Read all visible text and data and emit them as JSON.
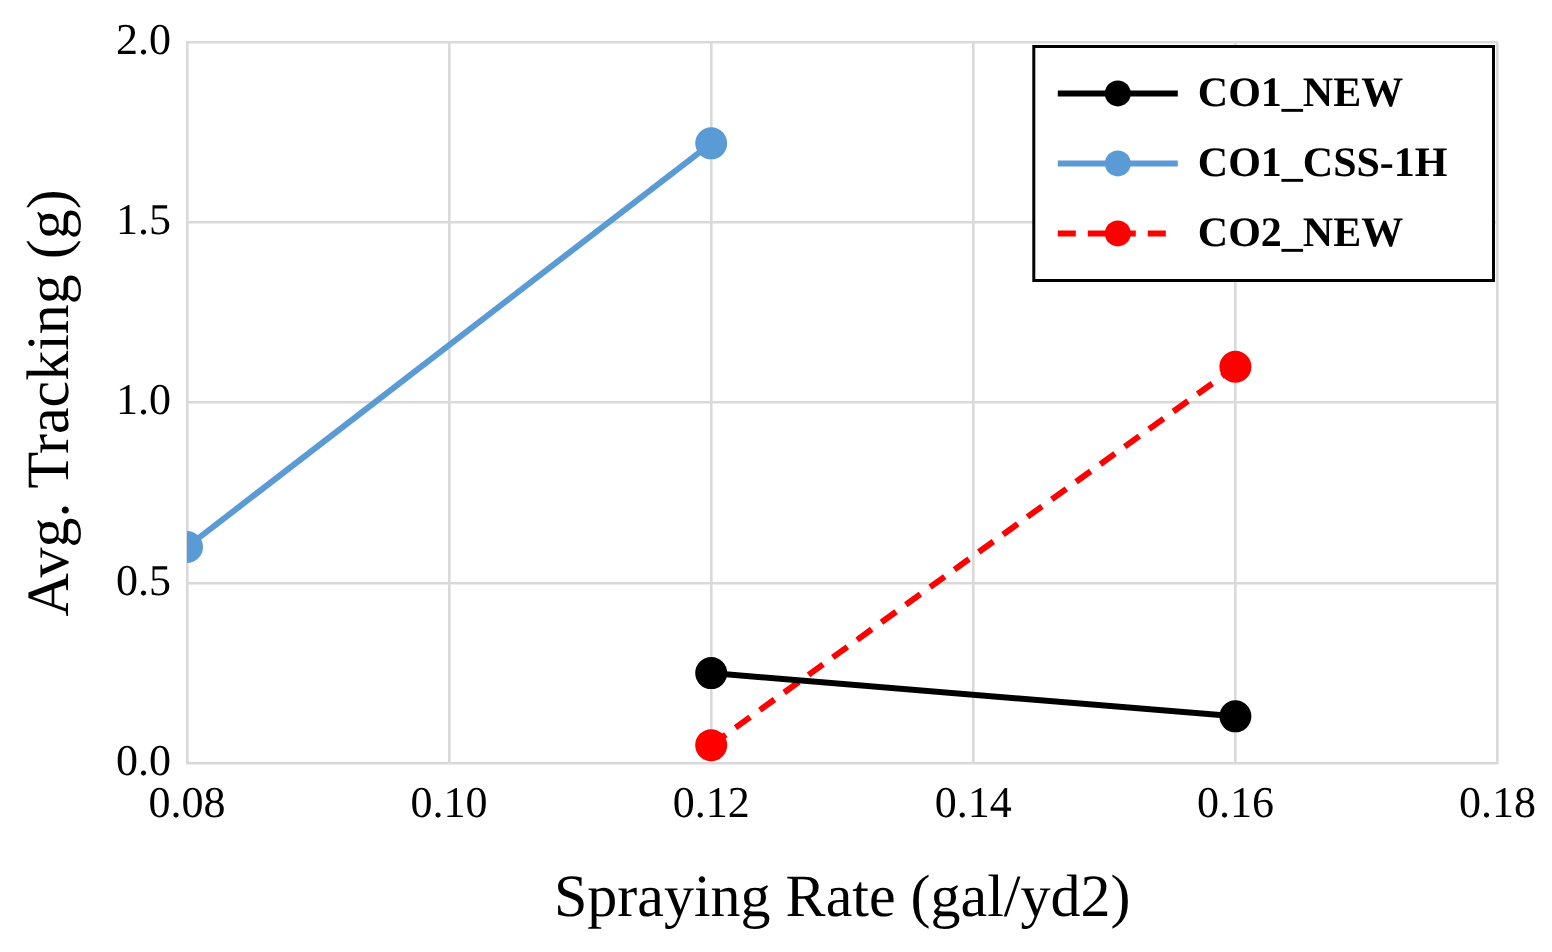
{
  "chart_data": {
    "type": "line",
    "xlabel": "Spraying Rate (gal/yd2)",
    "ylabel": "Avg. Tracking (g)",
    "xlim": [
      0.08,
      0.18
    ],
    "xticks": [
      {
        "value": 0.08,
        "label": "0.08"
      },
      {
        "value": 0.1,
        "label": "0.10"
      },
      {
        "value": 0.12,
        "label": "0.12"
      },
      {
        "value": 0.14,
        "label": "0.14"
      },
      {
        "value": 0.16,
        "label": "0.16"
      },
      {
        "value": 0.18,
        "label": "0.18"
      }
    ],
    "ylim": [
      0,
      2
    ],
    "yticks": [
      {
        "value": 0,
        "label": "0.0"
      },
      {
        "value": 0.5,
        "label": "0.5"
      },
      {
        "value": 1,
        "label": "1.0"
      },
      {
        "value": 1.5,
        "label": "1.5"
      },
      {
        "value": 2,
        "label": "2.0"
      }
    ],
    "grid": true,
    "legend": "top right",
    "marker": "circle",
    "series": [
      {
        "name": "CO1_NEW",
        "color": "#000000",
        "x": [
          0.12,
          0.16
        ],
        "values": [
          0.25,
          0.13
        ],
        "line_style": "solid"
      },
      {
        "name": "CO1_CSS-1H",
        "color": "#5b9bd5",
        "x": [
          0.08,
          0.12
        ],
        "values": [
          0.6,
          1.72
        ],
        "line_style": "solid"
      },
      {
        "name": "CO2_NEW",
        "color": "#ff0000",
        "x": [
          0.12,
          0.16
        ],
        "values": [
          0.05,
          1.1
        ],
        "line_style": "dashed"
      }
    ]
  }
}
